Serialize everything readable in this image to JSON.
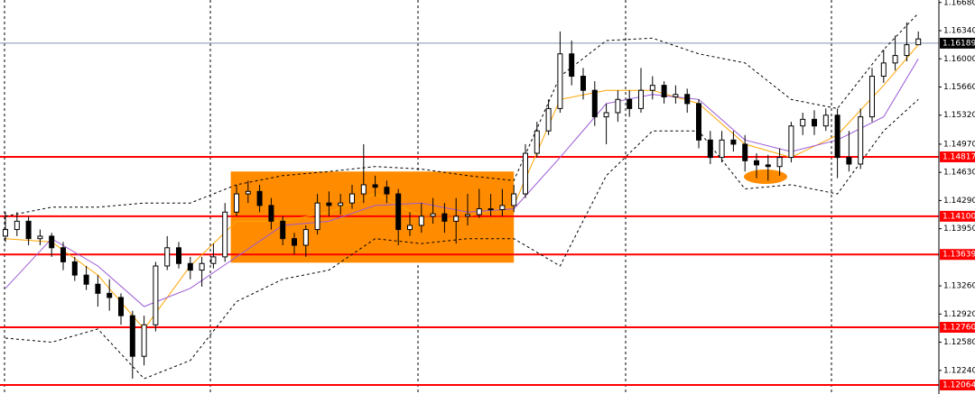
{
  "chart_data": {
    "type": "candlestick",
    "open": [
      1.1386,
      1.1394,
      1.1404,
      1.1383,
      1.1386,
      1.1372,
      1.1355,
      1.1339,
      1.1328,
      1.1317,
      1.1312,
      1.129,
      1.1241,
      1.1279,
      1.135,
      1.1372,
      1.1353,
      1.1345,
      1.1353,
      1.1361,
      1.1415,
      1.1437,
      1.144,
      1.1423,
      1.1404,
      1.1383,
      1.1375,
      1.1394,
      1.1426,
      1.1423,
      1.1426,
      1.1437,
      1.1448,
      1.1445,
      1.1437,
      1.1394,
      1.1399,
      1.141,
      1.1413,
      1.1404,
      1.141,
      1.1412,
      1.1419,
      1.1418,
      1.1423,
      1.1437,
      1.1486,
      1.1513,
      1.154,
      1.1606,
      1.1579,
      1.1562,
      1.153,
      1.1535,
      1.1551,
      1.154,
      1.1562,
      1.1568,
      1.1554,
      1.1557,
      1.1546,
      1.1502,
      1.1481,
      1.1502,
      1.1497,
      1.1477,
      1.1472,
      1.147,
      1.1481,
      1.1519,
      1.1527,
      1.1519,
      1.1532,
      1.1481,
      1.1473,
      1.153,
      1.1579,
      1.1595,
      1.1604,
      1.1617
    ],
    "high": [
      1.1415,
      1.1415,
      1.141,
      1.1394,
      1.139,
      1.1379,
      1.1361,
      1.135,
      1.1339,
      1.1334,
      1.1317,
      1.1296,
      1.129,
      1.1355,
      1.1386,
      1.1379,
      1.1361,
      1.1361,
      1.1377,
      1.1426,
      1.1448,
      1.1453,
      1.1448,
      1.1432,
      1.141,
      1.139,
      1.1399,
      1.1437,
      1.144,
      1.1437,
      1.1448,
      1.1497,
      1.1459,
      1.1453,
      1.1443,
      1.1415,
      1.1426,
      1.1432,
      1.1426,
      1.1432,
      1.1437,
      1.1443,
      1.1437,
      1.1443,
      1.1448,
      1.1497,
      1.1524,
      1.1551,
      1.1633,
      1.1622,
      1.1589,
      1.1573,
      1.1546,
      1.1562,
      1.1562,
      1.1589,
      1.1579,
      1.1573,
      1.1568,
      1.1564,
      1.1551,
      1.1513,
      1.1513,
      1.1513,
      1.1508,
      1.1486,
      1.1484,
      1.1492,
      1.1524,
      1.1535,
      1.1538,
      1.154,
      1.154,
      1.1513,
      1.154,
      1.1589,
      1.1611,
      1.1628,
      1.1644,
      1.1633
    ],
    "low": [
      1.1379,
      1.1386,
      1.1375,
      1.1375,
      1.1361,
      1.1345,
      1.1332,
      1.1321,
      1.1301,
      1.1296,
      1.1279,
      1.1214,
      1.123,
      1.1271,
      1.1345,
      1.1347,
      1.1334,
      1.1325,
      1.1347,
      1.1355,
      1.141,
      1.1426,
      1.1415,
      1.1394,
      1.1375,
      1.1364,
      1.1361,
      1.1388,
      1.141,
      1.1412,
      1.1419,
      1.1426,
      1.1434,
      1.1426,
      1.1375,
      1.1386,
      1.139,
      1.1401,
      1.139,
      1.1377,
      1.1399,
      1.1408,
      1.141,
      1.141,
      1.1415,
      1.1432,
      1.1481,
      1.1508,
      1.1535,
      1.1568,
      1.1551,
      1.1519,
      1.1497,
      1.1524,
      1.153,
      1.1535,
      1.1551,
      1.1546,
      1.1546,
      1.1535,
      1.1492,
      1.1473,
      1.1475,
      1.1488,
      1.1464,
      1.1456,
      1.1453,
      1.1459,
      1.1475,
      1.1508,
      1.1508,
      1.1513,
      1.1456,
      1.1464,
      1.1467,
      1.1524,
      1.1571,
      1.1586,
      1.1597,
      1.1617
    ],
    "close": [
      1.1394,
      1.1404,
      1.1383,
      1.1386,
      1.1372,
      1.1355,
      1.1339,
      1.1328,
      1.1317,
      1.1312,
      1.129,
      1.1241,
      1.1279,
      1.135,
      1.1372,
      1.1353,
      1.1345,
      1.1353,
      1.1361,
      1.1415,
      1.1437,
      1.144,
      1.1423,
      1.1404,
      1.1383,
      1.1375,
      1.1394,
      1.1426,
      1.1423,
      1.1426,
      1.1437,
      1.1448,
      1.1445,
      1.1437,
      1.1394,
      1.1399,
      1.141,
      1.1413,
      1.1404,
      1.141,
      1.1412,
      1.1419,
      1.1418,
      1.1423,
      1.1437,
      1.1486,
      1.1513,
      1.154,
      1.1606,
      1.1579,
      1.1562,
      1.153,
      1.1535,
      1.1551,
      1.154,
      1.1562,
      1.1568,
      1.1554,
      1.1557,
      1.1546,
      1.1502,
      1.1481,
      1.1502,
      1.1497,
      1.1477,
      1.1472,
      1.147,
      1.1481,
      1.1519,
      1.1527,
      1.1519,
      1.1532,
      1.1481,
      1.1473,
      1.153,
      1.1579,
      1.1595,
      1.1604,
      1.1617,
      1.1624
    ],
    "up_color": "#ffffff",
    "down_color": "#000000",
    "series": [
      {
        "color": "#ffa500",
        "dashed": false,
        "x": [
          0,
          4,
          8,
          12,
          16,
          20,
          24,
          28,
          32,
          36,
          40,
          44,
          48,
          52,
          56,
          60,
          64,
          68,
          72,
          76,
          79
        ],
        "values": [
          1.1383,
          1.1379,
          1.1339,
          1.1274,
          1.135,
          1.1404,
          1.1404,
          1.1415,
          1.1437,
          1.141,
          1.141,
          1.1423,
          1.1551,
          1.1562,
          1.1562,
          1.1546,
          1.1497,
          1.1481,
          1.1508,
          1.1568,
          1.1617
        ]
      },
      {
        "color": "#9b59d6",
        "dashed": false,
        "x": [
          0,
          4,
          8,
          12,
          16,
          20,
          24,
          28,
          32,
          36,
          40,
          44,
          48,
          52,
          56,
          60,
          64,
          68,
          72,
          76,
          79
        ],
        "values": [
          1.1323,
          1.1383,
          1.135,
          1.1301,
          1.1323,
          1.1361,
          1.1399,
          1.1404,
          1.1423,
          1.1426,
          1.1415,
          1.1419,
          1.1481,
          1.1546,
          1.1557,
          1.1551,
          1.1502,
          1.1488,
          1.1502,
          1.153,
          1.16
        ]
      },
      {
        "color": "#000000",
        "dashed": true,
        "x": [
          0,
          4,
          8,
          12,
          16,
          20,
          24,
          28,
          32,
          36,
          40,
          44,
          48,
          52,
          56,
          60,
          64,
          68,
          72,
          76,
          79
        ],
        "values": [
          1.141,
          1.1421,
          1.1421,
          1.1426,
          1.1426,
          1.1448,
          1.1459,
          1.1464,
          1.147,
          1.1467,
          1.1459,
          1.1453,
          1.1579,
          1.1622,
          1.1625,
          1.1606,
          1.1595,
          1.1551,
          1.154,
          1.1611,
          1.1655
        ]
      },
      {
        "color": "#000000",
        "dashed": true,
        "x": [
          0,
          4,
          8,
          12,
          16,
          20,
          24,
          28,
          32,
          36,
          40,
          44,
          48,
          52,
          56,
          60,
          64,
          68,
          72,
          76,
          79
        ],
        "values": [
          1.1263,
          1.1258,
          1.1274,
          1.1214,
          1.1236,
          1.1307,
          1.1334,
          1.1345,
          1.1383,
          1.1377,
          1.1383,
          1.1383,
          1.135,
          1.1459,
          1.1513,
          1.1513,
          1.1443,
          1.1448,
          1.1437,
          1.1513,
          1.1551
        ]
      }
    ],
    "highlight_zone": {
      "x": [
        19.5,
        44
      ],
      "y": [
        1.1354,
        1.1464
      ],
      "color": "#ff8c00"
    },
    "ylim": [
      1.11955,
      1.1671
    ],
    "yticks": [
      {
        "value": 1.1668,
        "label": "1.16680"
      },
      {
        "value": 1.1634,
        "label": "1.16340"
      },
      {
        "value": 1.16,
        "label": "1.16000"
      },
      {
        "value": 1.1566,
        "label": "1.15660"
      },
      {
        "value": 1.1532,
        "label": "1.15320"
      },
      {
        "value": 1.1497,
        "label": "1.14970"
      },
      {
        "value": 1.1463,
        "label": "1.14630"
      },
      {
        "value": 1.1429,
        "label": "1.14290"
      },
      {
        "value": 1.1395,
        "label": "1.13950"
      },
      {
        "value": 1.1326,
        "label": "1.13260"
      },
      {
        "value": 1.1292,
        "label": "1.12920"
      },
      {
        "value": 1.1258,
        "label": "1.12580"
      },
      {
        "value": 1.1224,
        "label": "1.12240"
      }
    ],
    "levels": [
      1.14817,
      {
        "value": 1.141,
        "label": "1.14100"
      },
      1.13639,
      {
        "value": 1.1276,
        "label": "1.12760"
      },
      1.12064
    ],
    "level_color": "#ff0000",
    "current_price": 1.16189,
    "current_price_color": "#7f93b3"
  }
}
